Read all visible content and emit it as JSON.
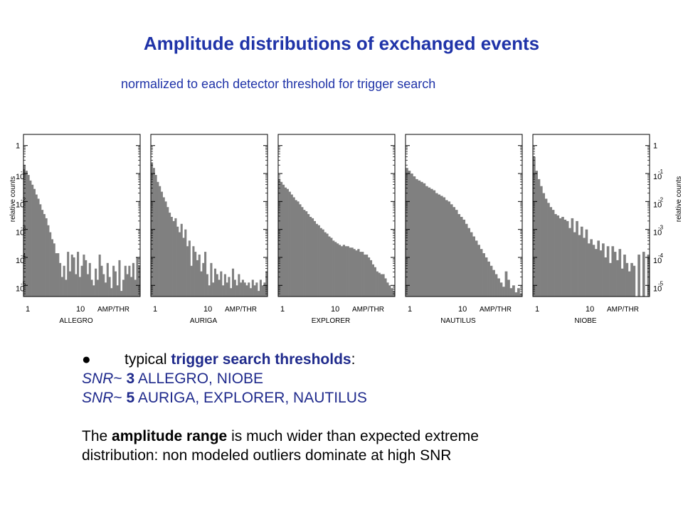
{
  "title": "Amplitude distributions of exchanged events",
  "subtitle": "normalized to each detector threshold for trigger search",
  "notes": {
    "bullet": "●",
    "line1_pre": "typical ",
    "line1_bold": "trigger search thresholds",
    "line1_post": ":",
    "snr_a_label": "SNR",
    "snr_a_tilde": "~",
    "snr_a_value": "3",
    "snr_a_text": " ALLEGRO, NIOBE",
    "snr_b_label": "SNR",
    "snr_b_tilde": "~",
    "snr_b_value": "5",
    "snr_b_text": " AURIGA, EXPLORER, NAUTILUS",
    "para_1": "The ",
    "para_bold": "amplitude range",
    "para_2": " is much wider than expected extreme",
    "para_3": "distribution: non modeled outliers dominate at high SNR"
  },
  "colors": {
    "title": "#1f33a8",
    "bars": "#808080",
    "text_blue": "#1f2a8c"
  },
  "chart_data": [
    {
      "type": "bar",
      "name": "ALLEGRO",
      "xlabel": "ALLEGRO",
      "xunit": "AMP/THR",
      "ylabel": "relative counts",
      "x_scale": "log",
      "y_scale": "log",
      "xtick_labels": [
        "1",
        "10"
      ],
      "ytick_labels": [
        "1",
        "10",
        "10",
        "10",
        "10",
        "10"
      ],
      "ytick_exponents": [
        "",
        "-1",
        "-2",
        "-3",
        "-4",
        "-5"
      ],
      "ylim_log10": [
        -5.4,
        0.4
      ],
      "values_log10": [
        -0.7,
        -0.9,
        -1.05,
        -1.25,
        -1.4,
        -1.55,
        -1.75,
        -1.9,
        -2.1,
        -2.3,
        -2.45,
        -2.6,
        -2.85,
        -3.1,
        -3.35,
        -3.5,
        -3.85,
        -3.85,
        -4.2,
        -4.7,
        -4.3,
        -4.8,
        -3.8,
        -4.5,
        -3.9,
        -4.0,
        -4.6,
        -3.8,
        -4.7,
        -4.3,
        -3.9,
        -4.1,
        -4.6,
        -4.2,
        -4.8,
        -5.0,
        -4.4,
        -4.8,
        -3.9,
        -4.3,
        -4.6,
        -4.9,
        -4.2,
        -4.7,
        -5.1,
        -4.3,
        -4.5,
        -5.0,
        -4.1,
        -5.2,
        -4.8,
        -4.3,
        -4.6,
        -4.3,
        -4.7,
        -4.2,
        -4.8,
        -4.0,
        -4.3
      ]
    },
    {
      "type": "bar",
      "name": "AURIGA",
      "xlabel": "AURIGA",
      "xunit": "AMP/THR",
      "x_scale": "log",
      "y_scale": "log",
      "xtick_labels": [
        "1",
        "10"
      ],
      "ylim_log10": [
        -5.4,
        0.4
      ],
      "values_log10": [
        -0.6,
        -0.8,
        -1.05,
        -1.3,
        -1.45,
        -1.65,
        -1.85,
        -2.0,
        -2.2,
        -2.4,
        -2.55,
        -2.7,
        -2.6,
        -2.9,
        -3.1,
        -2.8,
        -3.3,
        -3.0,
        -3.6,
        -3.4,
        -4.3,
        -3.6,
        -3.8,
        -4.1,
        -3.9,
        -4.5,
        -4.2,
        -3.8,
        -4.6,
        -5.0,
        -4.2,
        -4.9,
        -4.4,
        -4.6,
        -4.8,
        -4.5,
        -5.0,
        -4.6,
        -4.9,
        -4.7,
        -5.1,
        -4.4,
        -4.8,
        -5.0,
        -4.6,
        -4.9,
        -4.8,
        -4.9,
        -5.0,
        -4.9,
        -5.1,
        -4.8,
        -5.0,
        -4.9,
        -5.2,
        -4.8,
        -5.0,
        -4.9,
        -4.5
      ]
    },
    {
      "type": "bar",
      "name": "EXPLORER",
      "xlabel": "EXPLORER",
      "xunit": "AMP/THR",
      "x_scale": "log",
      "y_scale": "log",
      "xtick_labels": [
        "1",
        "10"
      ],
      "ylim_log10": [
        -5.4,
        0.4
      ],
      "values_log10": [
        -1.2,
        -1.3,
        -1.4,
        -1.5,
        -1.55,
        -1.65,
        -1.75,
        -1.85,
        -1.95,
        -2.0,
        -2.1,
        -2.2,
        -2.3,
        -2.35,
        -2.45,
        -2.55,
        -2.6,
        -2.7,
        -2.8,
        -2.85,
        -2.95,
        -3.0,
        -3.1,
        -3.15,
        -3.25,
        -3.3,
        -3.4,
        -3.45,
        -3.5,
        -3.55,
        -3.6,
        -3.55,
        -3.6,
        -3.6,
        -3.65,
        -3.65,
        -3.7,
        -3.75,
        -3.7,
        -3.8,
        -3.8,
        -3.9,
        -3.9,
        -4.0,
        -4.1,
        -4.25,
        -4.35,
        -4.5,
        -4.55,
        -4.6,
        -4.6,
        -4.75,
        -4.9,
        -5.0,
        -5.1,
        -5.2
      ]
    },
    {
      "type": "bar",
      "name": "NAUTILUS",
      "xlabel": "NAUTILUS",
      "xunit": "AMP/THR",
      "x_scale": "log",
      "y_scale": "log",
      "xtick_labels": [
        "1",
        "10"
      ],
      "ylim_log10": [
        -5.4,
        0.4
      ],
      "values_log10": [
        -0.8,
        -0.9,
        -1.0,
        -1.1,
        -1.2,
        -1.25,
        -1.3,
        -1.35,
        -1.45,
        -1.5,
        -1.55,
        -1.6,
        -1.7,
        -1.75,
        -1.8,
        -1.85,
        -1.95,
        -2.0,
        -2.1,
        -2.2,
        -2.3,
        -2.45,
        -2.55,
        -2.65,
        -2.8,
        -2.95,
        -3.1,
        -3.25,
        -3.4,
        -3.55,
        -3.7,
        -3.85,
        -4.0,
        -4.15,
        -4.3,
        -4.45,
        -4.6,
        -4.75,
        -4.9,
        -5.05,
        -4.5,
        -4.8,
        -5.1,
        -5.0,
        -5.25,
        -5.1,
        -5.3
      ]
    },
    {
      "type": "bar",
      "name": "NIOBE",
      "xlabel": "NIOBE",
      "xunit": "AMP/THR",
      "ylabel": "relative counts",
      "x_scale": "log",
      "y_scale": "log",
      "xtick_labels": [
        "1",
        "10"
      ],
      "ytick_labels": [
        "1",
        "10",
        "10",
        "10",
        "10",
        "10"
      ],
      "ytick_exponents": [
        "",
        "-1",
        "-2",
        "-3",
        "-4",
        "-5"
      ],
      "ylim_log10": [
        -5.4,
        0.4
      ],
      "values_log10": [
        -0.4,
        -0.9,
        -1.2,
        -1.45,
        -1.7,
        -1.9,
        -2.05,
        -2.2,
        -2.3,
        -2.45,
        -2.5,
        -2.6,
        -2.55,
        -2.65,
        -2.7,
        -2.95,
        -2.6,
        -3.1,
        -2.7,
        -3.2,
        -2.9,
        -3.3,
        -3.0,
        -3.5,
        -3.35,
        -3.55,
        -3.7,
        -3.4,
        -3.75,
        -3.5,
        -4.0,
        -3.6,
        -4.2,
        -3.6,
        -3.8,
        -4.1,
        -3.7,
        -4.4,
        -3.9,
        -4.2,
        -4.5,
        -4.2,
        -4.3,
        -5.4,
        -3.9,
        -5.4,
        -3.8,
        -5.4,
        -3.9
      ]
    }
  ]
}
